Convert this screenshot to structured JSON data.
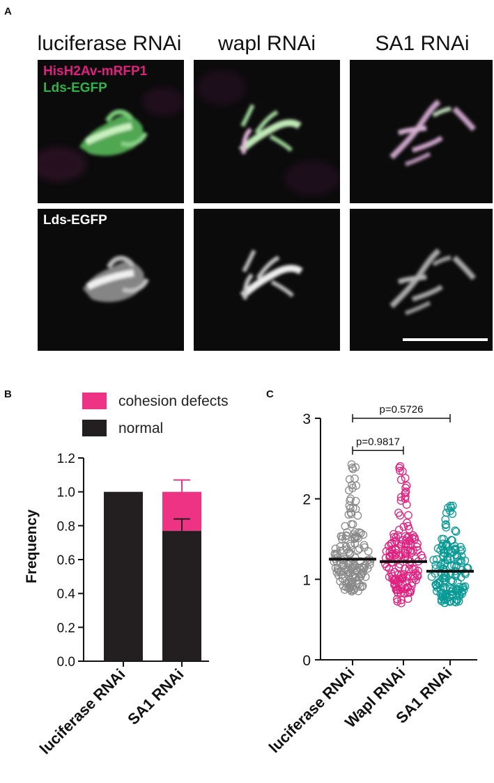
{
  "panel_a": {
    "letter": "A",
    "columns": [
      "luciferase RNAi",
      "wapl RNAi",
      "SA1 RNAi"
    ],
    "label_merge_1": "HisH2Av-mRFP1",
    "label_merge_2": "Lds-EGFP",
    "label_gray": "Lds-EGFP",
    "colors": {
      "magenta": "#e0207f",
      "green": "#2fb34a"
    }
  },
  "panel_b": {
    "letter": "B",
    "legend": [
      {
        "label": "cohesion defects",
        "color": "#ee3385"
      },
      {
        "label": "normal",
        "color": "#231f20"
      }
    ]
  },
  "panel_c": {
    "letter": "C",
    "comparisons": [
      "p=0.5726",
      "p=0.9817"
    ]
  },
  "chart_data": [
    {
      "type": "bar",
      "panel": "B",
      "categories": [
        "luciferase RNAi",
        "SA1 RNAi"
      ],
      "series": [
        {
          "name": "normal",
          "values": [
            1.0,
            0.77
          ],
          "error_bar": [
            null,
            0.07
          ],
          "color": "#231f20"
        },
        {
          "name": "cohesion defects",
          "values": [
            0.0,
            0.23
          ],
          "error_bar": [
            null,
            0.07
          ],
          "color": "#ee3385"
        }
      ],
      "ylabel": "Frequency",
      "ylim": [
        0,
        1.2
      ],
      "yticks": [
        "0.0",
        "0.2",
        "0.4",
        "0.6",
        "0.8",
        "1.0",
        "1.2"
      ],
      "stacked": true,
      "legend": "top"
    },
    {
      "type": "scatter",
      "panel": "C",
      "categories": [
        "luciferase RNAi",
        "Wapl RNAi",
        "SA1 RNAi"
      ],
      "means": [
        1.25,
        1.22,
        1.1
      ],
      "ranges": [
        [
          0.75,
          2.52
        ],
        [
          0.7,
          2.42
        ],
        [
          0.65,
          1.93
        ]
      ],
      "colors": [
        "#8a8a8a",
        "#e0207f",
        "#0a9a96"
      ],
      "ylim": [
        0,
        3
      ],
      "yticks": [
        "0",
        "1",
        "2",
        "3"
      ],
      "brackets": [
        {
          "from": 0,
          "to": 2,
          "label": "p=0.5726",
          "y": 3.0
        },
        {
          "from": 0,
          "to": 1,
          "label": "p=0.9817",
          "y": 2.6
        }
      ]
    }
  ]
}
